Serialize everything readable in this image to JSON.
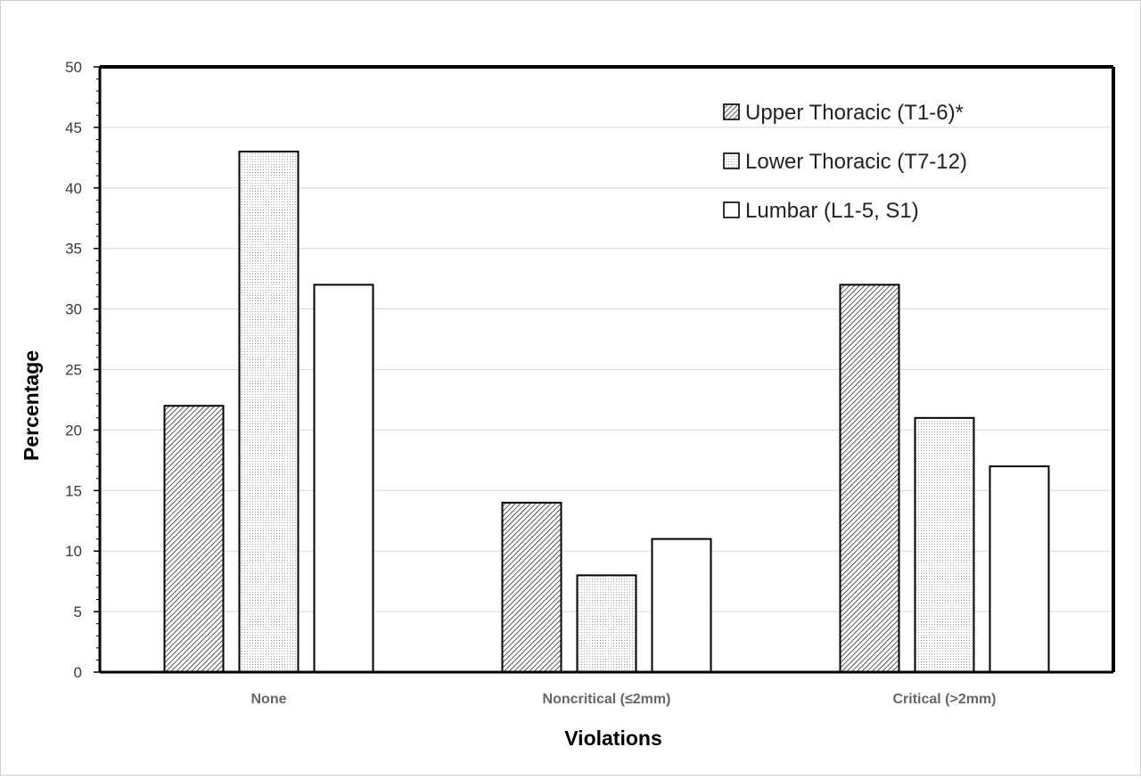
{
  "chart_data": {
    "type": "bar",
    "title": "",
    "xlabel": "Violations",
    "ylabel": "Percentage",
    "categories": [
      "None",
      "Noncritical (≤2mm)",
      "Critical (>2mm)"
    ],
    "series": [
      {
        "name": "Upper Thoracic (T1-6)*",
        "values": [
          22,
          14,
          32
        ],
        "pattern": "hatch"
      },
      {
        "name": "Lower Thoracic (T7-12)",
        "values": [
          43,
          8,
          21
        ],
        "pattern": "dots"
      },
      {
        "name": "Lumbar (L1-5, S1)",
        "values": [
          32,
          11,
          17
        ],
        "pattern": "solid"
      }
    ],
    "ylim": [
      0,
      50
    ],
    "yticks": [
      0,
      5,
      10,
      15,
      20,
      25,
      30,
      35,
      40,
      45,
      50
    ],
    "grid": true,
    "legend_position": "top-right",
    "colors": {
      "bar_fill": "#ffffff",
      "bar_stroke": "#000000",
      "grid": "#d9d9d9",
      "tick_label": "#3a3a3a",
      "category_label": "#666666"
    }
  }
}
